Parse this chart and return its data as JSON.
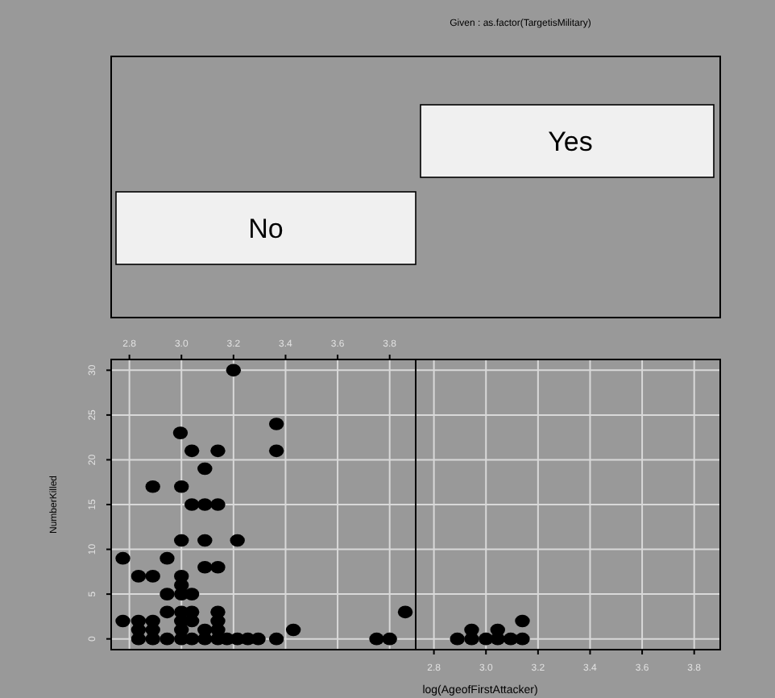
{
  "chart_data": [
    {
      "type": "scatter",
      "ylabel": "NumberKilled",
      "annotations": [
        "No"
      ],
      "xlim": [
        2.73,
        3.9
      ],
      "ylim": [
        -1.2,
        31.2
      ],
      "xticks": [
        2.8,
        {
          "value": 3,
          "label": "3.0"
        },
        3.2,
        3.4,
        3.6,
        3.8
      ],
      "yticks": [
        0,
        5,
        10,
        15,
        20,
        25,
        30
      ],
      "grid": true,
      "marker": "circle",
      "series": [
        {
          "color": "#000000",
          "x": [
            3.2,
            3.365,
            2.996,
            3.04,
            3.14,
            3.365,
            3.09,
            2.89,
            3.0,
            3.04,
            3.09,
            3.14,
            3.0,
            3.09,
            3.215,
            2.775,
            2.945,
            2.835,
            2.89,
            3.0,
            3.09,
            3.14,
            3.0,
            2.945,
            3.0,
            3.04,
            2.945,
            3.0,
            3.04,
            3.14,
            3.86,
            2.775,
            2.835,
            2.89,
            3.0,
            3.04,
            3.14,
            2.835,
            2.89,
            3.0,
            3.09,
            3.14,
            3.43,
            2.835,
            2.89,
            2.945,
            3.0,
            3.04,
            3.09,
            3.14,
            3.175,
            3.215,
            3.255,
            3.295,
            3.365,
            3.75,
            3.8
          ],
          "values": [
            30,
            24,
            23,
            21,
            21,
            21,
            19,
            17,
            17,
            15,
            15,
            15,
            11,
            11,
            11,
            9,
            9,
            7,
            7,
            7,
            8,
            8,
            6,
            5,
            5,
            5,
            3,
            3,
            3,
            3,
            3,
            2,
            2,
            2,
            2,
            2,
            2,
            1,
            1,
            1,
            1,
            1,
            1,
            0,
            0,
            0,
            0,
            0,
            0,
            0,
            0,
            0,
            0,
            0,
            0,
            0,
            0
          ]
        }
      ]
    },
    {
      "type": "scatter",
      "title": "Given : as.factor(TargetisMilitary)",
      "xlabel": "log(AgeofFirstAttacker)",
      "annotations": [
        "Yes"
      ],
      "xlim": [
        2.73,
        3.9
      ],
      "ylim": [
        -1.2,
        31.2
      ],
      "xticks": [
        2.8,
        {
          "value": 3,
          "label": "3.0"
        },
        3.2,
        3.4,
        3.6,
        3.8
      ],
      "yticks": [
        0,
        5,
        10,
        15,
        20,
        25,
        30
      ],
      "grid": true,
      "marker": "circle",
      "tick_labels": "x",
      "series": [
        {
          "color": "#000000",
          "x": [
            2.89,
            2.945,
            3.0,
            3.045,
            3.095,
            3.14,
            2.945,
            3.045,
            3.14
          ],
          "values": [
            0,
            0,
            0,
            0,
            0,
            0,
            1,
            1,
            2
          ]
        }
      ]
    }
  ]
}
